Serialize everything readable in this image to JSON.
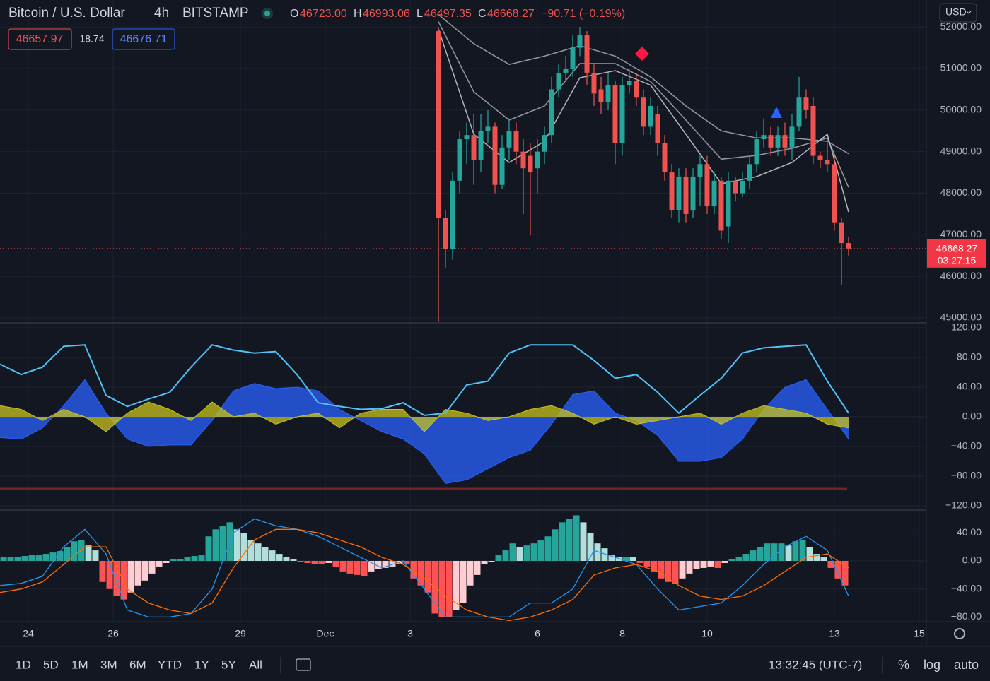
{
  "header": {
    "symbol": "Bitcoin / U.S. Dollar",
    "interval": "4h",
    "exchange": "BITSTAMP",
    "open": {
      "label": "O",
      "value": "46723.00"
    },
    "high": {
      "label": "H",
      "value": "46993.06"
    },
    "low": {
      "label": "L",
      "value": "46497.35"
    },
    "close_label": "C",
    "change": "−90.71 (−0.19%)",
    "bid": "46657.97",
    "spread": "18.74",
    "ask": "46676.71",
    "currency": "USD"
  },
  "chart_data": [
    {
      "type": "candlestick",
      "xlim": [
        23.333,
        45.167
      ],
      "ylim": [
        44880,
        52650
      ],
      "yticks": [
        {
          "value": 45000,
          "label": "45000.00"
        },
        {
          "value": 46000,
          "label": "46000.00"
        },
        {
          "value": 47000,
          "label": "47000.00"
        },
        {
          "value": 48000,
          "label": "48000.00"
        },
        {
          "value": 49000,
          "label": "49000.00"
        },
        {
          "value": 50000,
          "label": "50000.00"
        },
        {
          "value": 51000,
          "label": "51000.00"
        },
        {
          "value": 52000,
          "label": "52000.00"
        }
      ],
      "grid": true,
      "up_color": "#26a69a",
      "down_color": "#ef5350",
      "countdown": "03:27:15",
      "x": [
        33.667,
        33.833,
        34,
        34.167,
        34.333,
        34.5,
        34.667,
        34.833,
        35,
        35.167,
        35.333,
        35.5,
        35.667,
        35.833,
        36,
        36.167,
        36.333,
        36.5,
        36.667,
        36.833,
        37,
        37.167,
        37.333,
        37.5,
        37.667,
        37.833,
        38,
        38.167,
        38.333,
        38.5,
        38.667,
        38.833,
        39,
        39.167,
        39.333,
        39.5,
        39.667,
        39.833,
        40,
        40.167,
        40.333,
        40.5,
        40.667,
        40.833,
        41,
        41.167,
        41.333,
        41.5,
        41.667,
        41.833,
        42,
        42.167,
        42.333,
        42.5,
        42.667,
        42.833,
        43,
        43.167,
        43.333
      ],
      "open": [
        51900,
        47400,
        46650,
        48300,
        49300,
        49400,
        48800,
        49500,
        49600,
        48200,
        49100,
        49500,
        49000,
        48900,
        48600,
        49000,
        49400,
        50500,
        50900,
        51000,
        51500,
        51800,
        50900,
        50500,
        50200,
        50600,
        49200,
        50600,
        50700,
        50300,
        49600,
        49900,
        49200,
        48500,
        47600,
        48400,
        47600,
        48400,
        48700,
        47700,
        48300,
        47200,
        48300,
        48000,
        48300,
        48700,
        49300,
        49400,
        49100,
        49400,
        49100,
        49600,
        50300,
        50100,
        48900,
        48800,
        48700,
        47300,
        46800
      ],
      "high": [
        52000,
        47600,
        48500,
        49500,
        49700,
        49900,
        49900,
        50000,
        49700,
        49400,
        49800,
        49700,
        49300,
        49200,
        49300,
        49600,
        50800,
        51100,
        51300,
        51800,
        52000,
        51900,
        51100,
        50800,
        50900,
        50700,
        50800,
        51000,
        50900,
        50500,
        50300,
        50100,
        49400,
        48700,
        48600,
        48600,
        48600,
        48900,
        48900,
        48500,
        48400,
        48500,
        48400,
        48500,
        48900,
        49500,
        49800,
        49600,
        49600,
        49700,
        49900,
        50800,
        50500,
        50300,
        49000,
        49200,
        48900,
        47400,
        46950
      ],
      "low": [
        44900,
        46200,
        46400,
        48000,
        48700,
        48200,
        48500,
        49200,
        48000,
        48100,
        48800,
        48700,
        47500,
        47000,
        48000,
        48700,
        49200,
        50300,
        50700,
        50800,
        51300,
        50600,
        50100,
        49900,
        50000,
        48700,
        48900,
        50400,
        50100,
        49400,
        49400,
        48900,
        48300,
        47400,
        47300,
        47300,
        47400,
        47700,
        47500,
        47500,
        46900,
        46800,
        47800,
        47900,
        48100,
        48500,
        49100,
        48900,
        48900,
        48900,
        48800,
        49500,
        49800,
        48700,
        48600,
        48500,
        47100,
        45800,
        46500
      ],
      "close": [
        47400,
        46650,
        48300,
        49300,
        49400,
        48800,
        49500,
        49600,
        48200,
        49100,
        49500,
        49000,
        48600,
        48500,
        49000,
        49400,
        50500,
        50900,
        51000,
        51500,
        51800,
        50900,
        50400,
        50200,
        50600,
        49200,
        50600,
        50700,
        50300,
        49600,
        50100,
        49200,
        48500,
        47600,
        48400,
        47500,
        48400,
        48700,
        47700,
        48300,
        47100,
        48300,
        48000,
        48300,
        48700,
        49300,
        49400,
        49100,
        49400,
        49100,
        49600,
        50300,
        50000,
        48900,
        48800,
        48700,
        47300,
        46800,
        46668.27
      ],
      "ribbon": {
        "x": [
          33.667,
          34.5,
          35.333,
          36.167,
          37,
          37.833,
          38.667,
          39.5,
          40.333,
          41.167,
          42,
          42.833,
          43.333
        ],
        "series": [
          {
            "color": "#9598a1",
            "values": [
              52300,
              51600,
              51100,
              51300,
              51550,
              51300,
              50800,
              50100,
              49500,
              49330,
              49330,
              49250,
              48950
            ]
          },
          {
            "color": "#9598a1",
            "values": [
              52130,
              50440,
              49760,
              50100,
              51120,
              51120,
              50690,
              49760,
              48820,
              48910,
              49080,
              49330,
              48140
            ]
          },
          {
            "color": "#b2b5be",
            "values": [
              51950,
              49420,
              48740,
              49250,
              50780,
              50950,
              50600,
              49420,
              48230,
              48400,
              48740,
              49420,
              47550
            ]
          }
        ]
      }
    },
    {
      "type": "area",
      "xlim": [
        23.333,
        45.167
      ],
      "ylim": [
        -125.7,
        126.7
      ],
      "yticks": [
        {
          "value": 120,
          "label": "120.00"
        },
        {
          "value": 80,
          "label": "80.00"
        },
        {
          "value": 40,
          "label": "40.00"
        },
        {
          "value": 0,
          "label": "0.00"
        },
        {
          "value": -40,
          "label": "−40.00"
        },
        {
          "value": -80,
          "label": "−80.00"
        },
        {
          "value": -120,
          "label": "−120.00"
        }
      ],
      "grid": true,
      "x": [
        23.333,
        23.833,
        24.333,
        24.833,
        25.333,
        25.833,
        26.333,
        26.833,
        27.333,
        27.833,
        28.333,
        28.833,
        29.333,
        29.833,
        30.333,
        30.833,
        31.333,
        31.833,
        32.333,
        32.833,
        33.333,
        33.833,
        34.333,
        34.833,
        35.333,
        35.833,
        36.333,
        36.833,
        37.333,
        37.833,
        38.333,
        38.833,
        39.333,
        39.833,
        40.333,
        40.833,
        41.333,
        41.833,
        42.333,
        42.833,
        43.333
      ],
      "series": [
        {
          "color": "#2962ff",
          "fill": true,
          "values": [
            -28,
            -30,
            -15,
            15,
            50,
            5,
            -30,
            -40,
            -38,
            -38,
            -5,
            35,
            45,
            38,
            40,
            35,
            10,
            -5,
            -20,
            -30,
            -50,
            -90,
            -85,
            -70,
            -55,
            -45,
            -10,
            30,
            35,
            5,
            -5,
            -25,
            -60,
            -60,
            -55,
            -30,
            10,
            40,
            50,
            10,
            -30
          ]
        },
        {
          "color": "#c8c31f",
          "fill": true,
          "values": [
            15,
            10,
            -5,
            10,
            0,
            -20,
            5,
            20,
            10,
            -5,
            20,
            0,
            5,
            -10,
            0,
            5,
            -15,
            5,
            10,
            10,
            -20,
            10,
            5,
            -5,
            0,
            10,
            15,
            5,
            -10,
            0,
            -10,
            -5,
            0,
            5,
            -10,
            5,
            15,
            10,
            5,
            -10,
            -15
          ]
        },
        {
          "color": "#4fc3f7",
          "fill": false,
          "values": [
            71,
            57,
            67,
            95,
            97,
            29,
            14,
            24,
            33,
            67,
            97,
            90,
            86,
            88,
            57,
            19,
            14,
            10,
            11,
            19,
            2,
            5,
            43,
            48,
            86,
            97,
            97,
            97,
            76,
            52,
            57,
            33,
            5,
            29,
            52,
            86,
            93,
            95,
            97,
            48,
            5
          ]
        }
      ]
    },
    {
      "type": "bar",
      "xlim": [
        23.333,
        45.167
      ],
      "ylim": [
        -86.6,
        72.5
      ],
      "yticks": [
        {
          "value": 40,
          "label": "40.00"
        },
        {
          "value": 0,
          "label": "0.00"
        },
        {
          "value": -40,
          "label": "−40.00"
        },
        {
          "value": -80,
          "label": "−80.00"
        }
      ],
      "xticks": [
        24,
        26,
        29,
        {
          "value": 31,
          "label": "Dec"
        },
        {
          "value": 33,
          "label": "3"
        },
        {
          "value": 36,
          "label": "6"
        },
        {
          "value": 38,
          "label": "8"
        },
        {
          "value": 40,
          "label": "10"
        },
        {
          "value": 43,
          "label": "13"
        },
        {
          "value": 45,
          "label": "15"
        }
      ],
      "grid": true,
      "colors": {
        "up_rising": "#26a69a",
        "up_falling": "#b2dfdb",
        "down_falling": "#ff5252",
        "down_rising": "#ffcdd2"
      },
      "x": [
        23.417,
        23.583,
        23.75,
        23.917,
        24.083,
        24.25,
        24.417,
        24.583,
        24.75,
        24.917,
        25.083,
        25.25,
        25.417,
        25.583,
        25.75,
        25.917,
        26.083,
        26.25,
        26.417,
        26.583,
        26.75,
        26.917,
        27.083,
        27.25,
        27.417,
        27.583,
        27.75,
        27.917,
        28.083,
        28.25,
        28.417,
        28.583,
        28.75,
        28.917,
        29.083,
        29.25,
        29.417,
        29.583,
        29.75,
        29.917,
        30.083,
        30.25,
        30.417,
        30.583,
        30.75,
        30.917,
        31.083,
        31.25,
        31.417,
        31.583,
        31.75,
        31.917,
        32.083,
        32.25,
        32.417,
        32.583,
        32.75,
        32.917,
        33.083,
        33.25,
        33.417,
        33.583,
        33.75,
        33.917,
        34.083,
        34.25,
        34.417,
        34.583,
        34.75,
        34.917,
        35.083,
        35.25,
        35.417,
        35.583,
        35.75,
        35.917,
        36.083,
        36.25,
        36.417,
        36.583,
        36.75,
        36.917,
        37.083,
        37.25,
        37.417,
        37.583,
        37.75,
        37.917,
        38.083,
        38.25,
        38.417,
        38.583,
        38.75,
        38.917,
        39.083,
        39.25,
        39.417,
        39.583,
        39.75,
        39.917,
        40.083,
        40.25,
        40.417,
        40.583,
        40.75,
        40.917,
        41.083,
        41.25,
        41.417,
        41.583,
        41.75,
        41.917,
        42.083,
        42.25,
        42.417,
        42.583,
        42.75,
        42.917,
        43.083,
        43.25
      ],
      "values": [
        5,
        5,
        6,
        7,
        8,
        8,
        10,
        12,
        14,
        20,
        28,
        30,
        22,
        15,
        -30,
        -40,
        -50,
        -55,
        -45,
        -35,
        -28,
        -18,
        -8,
        -3,
        2,
        3,
        5,
        7,
        8,
        35,
        45,
        50,
        55,
        45,
        40,
        30,
        25,
        20,
        15,
        10,
        6,
        2,
        -2,
        -3,
        -5,
        -5,
        -3,
        -8,
        -15,
        -18,
        -20,
        -22,
        -15,
        -12,
        -10,
        -8,
        -5,
        -5,
        -25,
        -35,
        -45,
        -75,
        -80,
        -80,
        -70,
        -60,
        -35,
        -20,
        -5,
        -2,
        8,
        15,
        25,
        20,
        22,
        25,
        30,
        35,
        45,
        55,
        60,
        65,
        55,
        40,
        25,
        18,
        8,
        5,
        6,
        5,
        -3,
        -8,
        -15,
        -25,
        -30,
        -33,
        -25,
        -18,
        -12,
        -10,
        -8,
        -10,
        -3,
        3,
        5,
        10,
        15,
        20,
        25,
        25,
        25,
        22,
        28,
        30,
        20,
        10,
        5,
        -10,
        -25,
        -35
      ],
      "lines": {
        "x": [
          23.333,
          23.833,
          24.333,
          24.833,
          25.333,
          25.833,
          26.333,
          26.833,
          27.333,
          27.833,
          28.333,
          28.833,
          29.333,
          29.833,
          30.333,
          30.833,
          31.333,
          31.833,
          32.333,
          32.833,
          33.333,
          33.833,
          34.333,
          34.833,
          35.333,
          35.833,
          36.333,
          36.833,
          37.333,
          37.833,
          38.333,
          38.833,
          39.333,
          39.833,
          40.333,
          40.833,
          41.333,
          41.833,
          42.333,
          42.833,
          43.333
        ],
        "series": [
          {
            "color": "#2196f3",
            "values": [
              -35,
              -32,
              -22,
              20,
              45,
              10,
              -70,
              -80,
              -80,
              -75,
              -40,
              40,
              60,
              50,
              45,
              35,
              20,
              5,
              -10,
              0,
              -40,
              -80,
              -80,
              -80,
              -80,
              -60,
              -60,
              -40,
              15,
              5,
              -5,
              -40,
              -70,
              -65,
              -60,
              -35,
              -5,
              20,
              35,
              15,
              -50
            ]
          },
          {
            "color": "#ff6d00",
            "values": [
              -45,
              -40,
              -30,
              -5,
              20,
              20,
              -40,
              -60,
              -70,
              -75,
              -60,
              -10,
              30,
              45,
              45,
              40,
              30,
              20,
              5,
              -5,
              -25,
              -50,
              -70,
              -80,
              -85,
              -80,
              -70,
              -55,
              -20,
              -10,
              -5,
              -15,
              -35,
              -50,
              -55,
              -50,
              -35,
              -15,
              5,
              10,
              -10
            ]
          }
        ]
      }
    }
  ],
  "toolbar": {
    "ranges": [
      "1D",
      "5D",
      "1M",
      "3M",
      "6M",
      "YTD",
      "1Y",
      "5Y",
      "All"
    ],
    "clock": "13:32:45 (UTC-7)",
    "percent": "%",
    "log": "log",
    "auto": "auto"
  }
}
